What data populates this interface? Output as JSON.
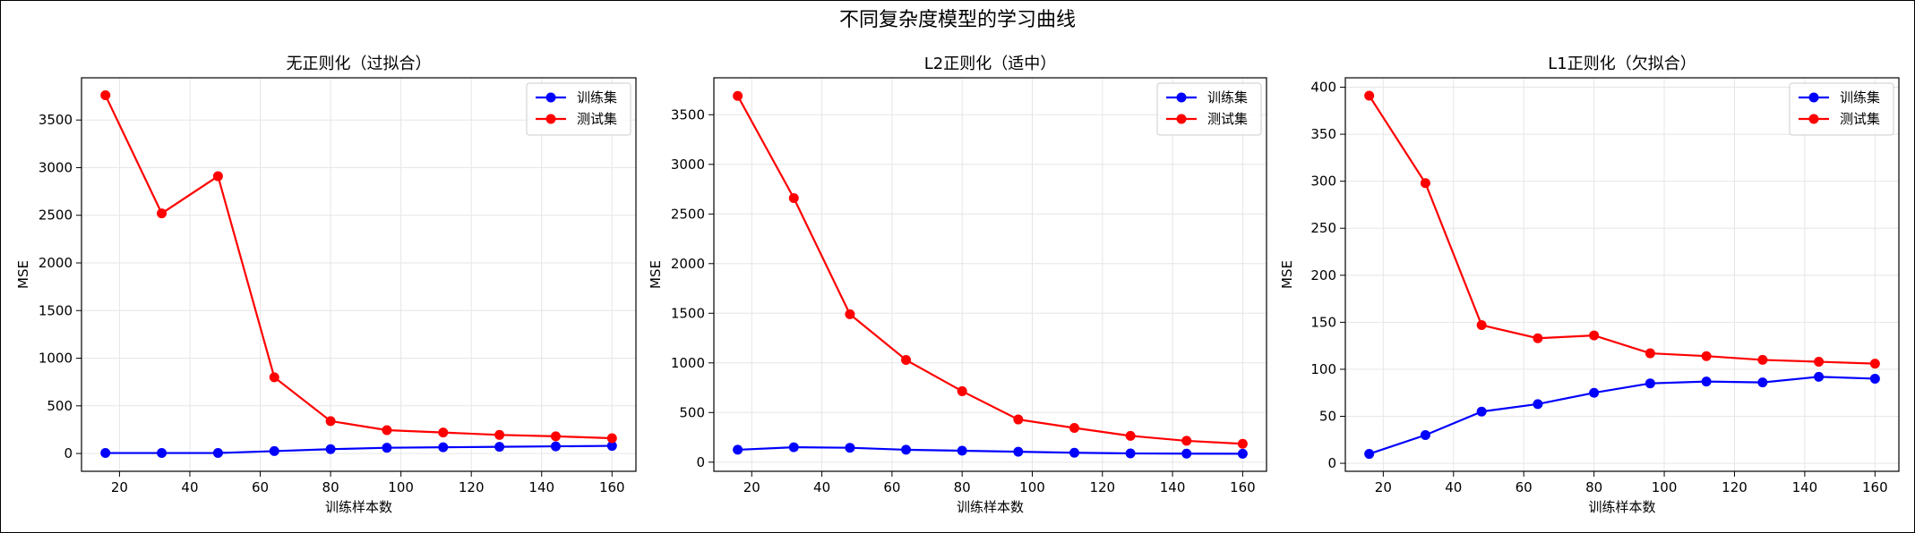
{
  "figure": {
    "title": "不同复杂度模型的学习曲线"
  },
  "chart_data": [
    {
      "type": "line",
      "title": "无正则化（过拟合）",
      "xlabel": "训练样本数",
      "ylabel": "MSE",
      "x": [
        16,
        32,
        48,
        64,
        80,
        96,
        112,
        128,
        144,
        160
      ],
      "xticks": [
        20,
        40,
        60,
        80,
        100,
        120,
        140,
        160
      ],
      "yticks": [
        0,
        500,
        1000,
        1500,
        2000,
        2500,
        3000,
        3500
      ],
      "xlim": [
        9.2,
        166.8
      ],
      "ylim": [
        -187,
        3943
      ],
      "grid": true,
      "legend": "top-right",
      "series": [
        {
          "name": "训练集",
          "color": "#0000ff",
          "values": [
            5,
            5,
            5,
            25,
            45,
            60,
            65,
            70,
            75,
            80
          ]
        },
        {
          "name": "测试集",
          "color": "#ff0000",
          "values": [
            3760,
            2520,
            2910,
            800,
            340,
            245,
            220,
            195,
            180,
            160
          ]
        }
      ]
    },
    {
      "type": "line",
      "title": "L2正则化（适中）",
      "xlabel": "训练样本数",
      "ylabel": "MSE",
      "x": [
        16,
        32,
        48,
        64,
        80,
        96,
        112,
        128,
        144,
        160
      ],
      "xticks": [
        20,
        40,
        60,
        80,
        100,
        120,
        140,
        160
      ],
      "yticks": [
        0,
        500,
        1000,
        1500,
        2000,
        2500,
        3000,
        3500
      ],
      "xlim": [
        9.2,
        166.8
      ],
      "ylim": [
        -92,
        3872
      ],
      "grid": true,
      "legend": "top-right",
      "series": [
        {
          "name": "训练集",
          "color": "#0000ff",
          "values": [
            125,
            150,
            145,
            125,
            115,
            105,
            95,
            88,
            86,
            85
          ]
        },
        {
          "name": "测试集",
          "color": "#ff0000",
          "values": [
            3690,
            2660,
            1490,
            1030,
            715,
            430,
            345,
            265,
            215,
            185
          ]
        }
      ]
    },
    {
      "type": "line",
      "title": "L1正则化（欠拟合）",
      "xlabel": "训练样本数",
      "ylabel": "MSE",
      "x": [
        16,
        32,
        48,
        64,
        80,
        96,
        112,
        128,
        144,
        160
      ],
      "xticks": [
        20,
        40,
        60,
        80,
        100,
        120,
        140,
        160
      ],
      "yticks": [
        0,
        50,
        100,
        150,
        200,
        250,
        300,
        350,
        400
      ],
      "xlim": [
        9.2,
        166.8
      ],
      "ylim": [
        -8.5,
        410
      ],
      "grid": true,
      "legend": "top-right",
      "series": [
        {
          "name": "训练集",
          "color": "#0000ff",
          "values": [
            10,
            30,
            55,
            63,
            75,
            85,
            87,
            86,
            92,
            90
          ]
        },
        {
          "name": "测试集",
          "color": "#ff0000",
          "values": [
            391,
            298,
            147,
            133,
            136,
            117,
            114,
            110,
            108,
            106
          ]
        }
      ]
    }
  ]
}
